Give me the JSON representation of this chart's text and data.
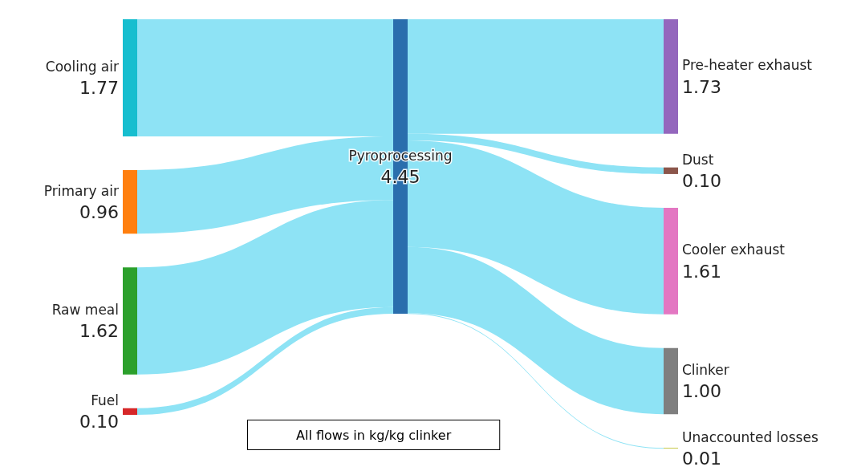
{
  "chart_data": {
    "type": "other",
    "annotations": [
      "All flows in kg/kg clinker"
    ],
    "categories": [
      "Cooling air",
      "Primary air",
      "Raw meal",
      "Fuel",
      "Pyroprocessing",
      "Pre-heater exhaust",
      "Dust",
      "Cooler exhaust",
      "Clinker",
      "Unaccounted losses"
    ],
    "values": [
      1.77,
      0.96,
      1.62,
      0.1,
      4.45,
      1.73,
      0.1,
      1.61,
      1.0,
      0.01
    ],
    "value_labels": [
      "1.77",
      "0.96",
      "1.62",
      "0.10",
      "4.45",
      "1.73",
      "0.10",
      "1.61",
      "1.00",
      "0.01"
    ],
    "colors": [
      "#17becf",
      "#ff7f0e",
      "#2ca02c",
      "#d62728",
      "#2a6ead",
      "#9467bd",
      "#8c564b",
      "#e377c2",
      "#7f7f7f",
      "#bcbd22"
    ]
  }
}
